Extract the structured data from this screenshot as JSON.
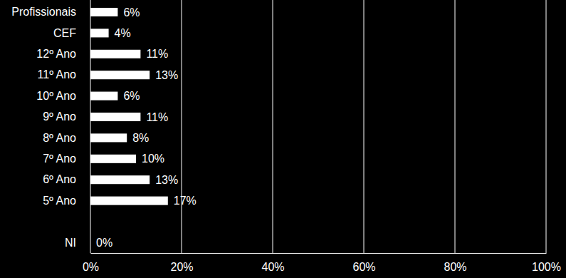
{
  "chart_data": {
    "type": "bar",
    "orientation": "horizontal",
    "categories": [
      "Profissionais",
      "CEF",
      "12º Ano",
      "11º Ano",
      "10º Ano",
      "9º Ano",
      "8º Ano",
      "7º Ano",
      "6º Ano",
      "5º Ano",
      null,
      "NI"
    ],
    "values": [
      6,
      4,
      11,
      13,
      6,
      11,
      8,
      10,
      13,
      17,
      null,
      0
    ],
    "value_labels": [
      "6%",
      "4%",
      "11%",
      "13%",
      "6%",
      "11%",
      "8%",
      "10%",
      "13%",
      "17%",
      null,
      "0%"
    ],
    "color": "#ffffff",
    "xlim": [
      0,
      100
    ],
    "xticks": [
      {
        "value": 0,
        "label": "0%"
      },
      {
        "value": 20,
        "label": "20%"
      },
      {
        "value": 40,
        "label": "40%"
      },
      {
        "value": 60,
        "label": "60%"
      },
      {
        "value": 80,
        "label": "80%"
      },
      {
        "value": 100,
        "label": "100%"
      }
    ],
    "grid": true,
    "data_labels": true
  }
}
